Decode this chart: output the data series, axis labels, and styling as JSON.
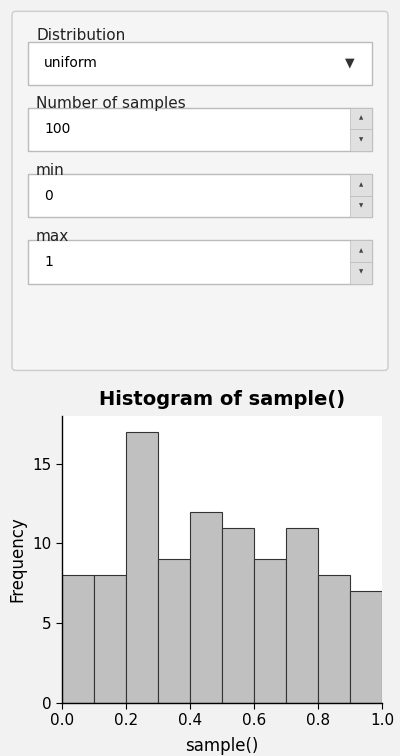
{
  "title": "Histogram of sample()",
  "xlabel": "sample()",
  "ylabel": "Frequency",
  "bar_edges": [
    0.0,
    0.1,
    0.2,
    0.3,
    0.4,
    0.5,
    0.6,
    0.7,
    0.8,
    0.9,
    1.0
  ],
  "bar_heights": [
    8,
    8,
    17,
    9,
    12,
    11,
    9,
    11,
    8,
    7
  ],
  "bar_color": "#c0c0c0",
  "bar_edgecolor": "#333333",
  "ylim": [
    0,
    17
  ],
  "yticks": [
    0,
    5,
    10,
    15
  ],
  "xticks": [
    0.0,
    0.2,
    0.4,
    0.6,
    0.8,
    1.0
  ],
  "bg_color": "#f2f2f2",
  "plot_bg": "#ffffff",
  "title_fontsize": 14,
  "label_fontsize": 12,
  "tick_fontsize": 11,
  "ui_bg": "#ebebeb",
  "ui_panel_bg": "#f5f5f5",
  "dropdown_label": "Distribution",
  "dropdown_value": "uniform",
  "field1_label": "Number of samples",
  "field1_value": "100",
  "field2_label": "min",
  "field2_value": "0",
  "field3_label": "max",
  "field3_value": "1"
}
